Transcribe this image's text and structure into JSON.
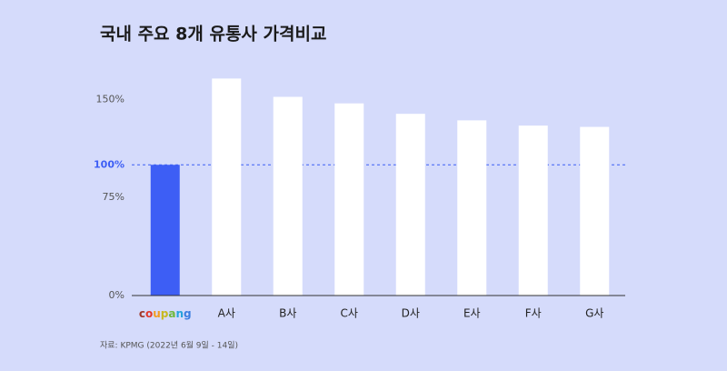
{
  "chart_data": {
    "type": "bar",
    "title": "국내 주요 8개 유통사 가격비교",
    "source": "자료: KPMG (2022년 6월 9일 - 14일)",
    "categories": [
      "coupang",
      "A사",
      "B사",
      "C사",
      "D사",
      "E사",
      "F사",
      "G사"
    ],
    "values": [
      100,
      166,
      152,
      147,
      139,
      134,
      130,
      129
    ],
    "colors": [
      "#3d5ef5",
      "#ffffff",
      "#ffffff",
      "#ffffff",
      "#ffffff",
      "#ffffff",
      "#ffffff",
      "#ffffff"
    ],
    "ylim": [
      0,
      160
    ],
    "yticks": [
      {
        "value": 0,
        "label": "0%"
      },
      {
        "value": 75,
        "label": "75%"
      },
      {
        "value": 100,
        "label": "100%"
      },
      {
        "value": 150,
        "label": "150%"
      }
    ],
    "highlight_tick": 100,
    "highlight_color": "#3d5ef5"
  }
}
